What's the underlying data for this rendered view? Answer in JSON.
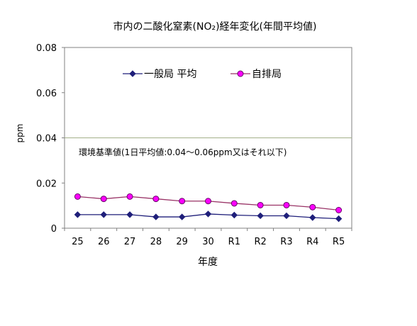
{
  "chart_data": {
    "type": "line",
    "title": "市内の二酸化窒素(NO₂)経年変化(年間平均値)",
    "xlabel": "年度",
    "ylabel": "ppm",
    "categories": [
      "25",
      "26",
      "27",
      "28",
      "29",
      "30",
      "R1",
      "R2",
      "R3",
      "R4",
      "R5"
    ],
    "ylim": [
      0,
      0.08
    ],
    "yticks": [
      "0",
      "0.02",
      "0.04",
      "0.06",
      "0.08"
    ],
    "grid": false,
    "legend_position": "top",
    "series": [
      {
        "name": "一般局 平均",
        "color": "#1f1f7a",
        "marker": "diamond",
        "values": [
          0.006,
          0.006,
          0.006,
          0.005,
          0.005,
          0.0063,
          0.0058,
          0.0055,
          0.0055,
          0.0047,
          0.0042
        ]
      },
      {
        "name": "自排局",
        "color": "#ff00ff",
        "line_color": "#993366",
        "marker": "circle",
        "values": [
          0.014,
          0.013,
          0.014,
          0.013,
          0.012,
          0.012,
          0.011,
          0.0102,
          0.0102,
          0.0093,
          0.008
        ]
      }
    ],
    "reference_line": {
      "value": 0.04,
      "color": "#a3b08a",
      "label": "環境基準値(1日平均値:0.04～0.06ppm又はそれ以下)"
    }
  }
}
